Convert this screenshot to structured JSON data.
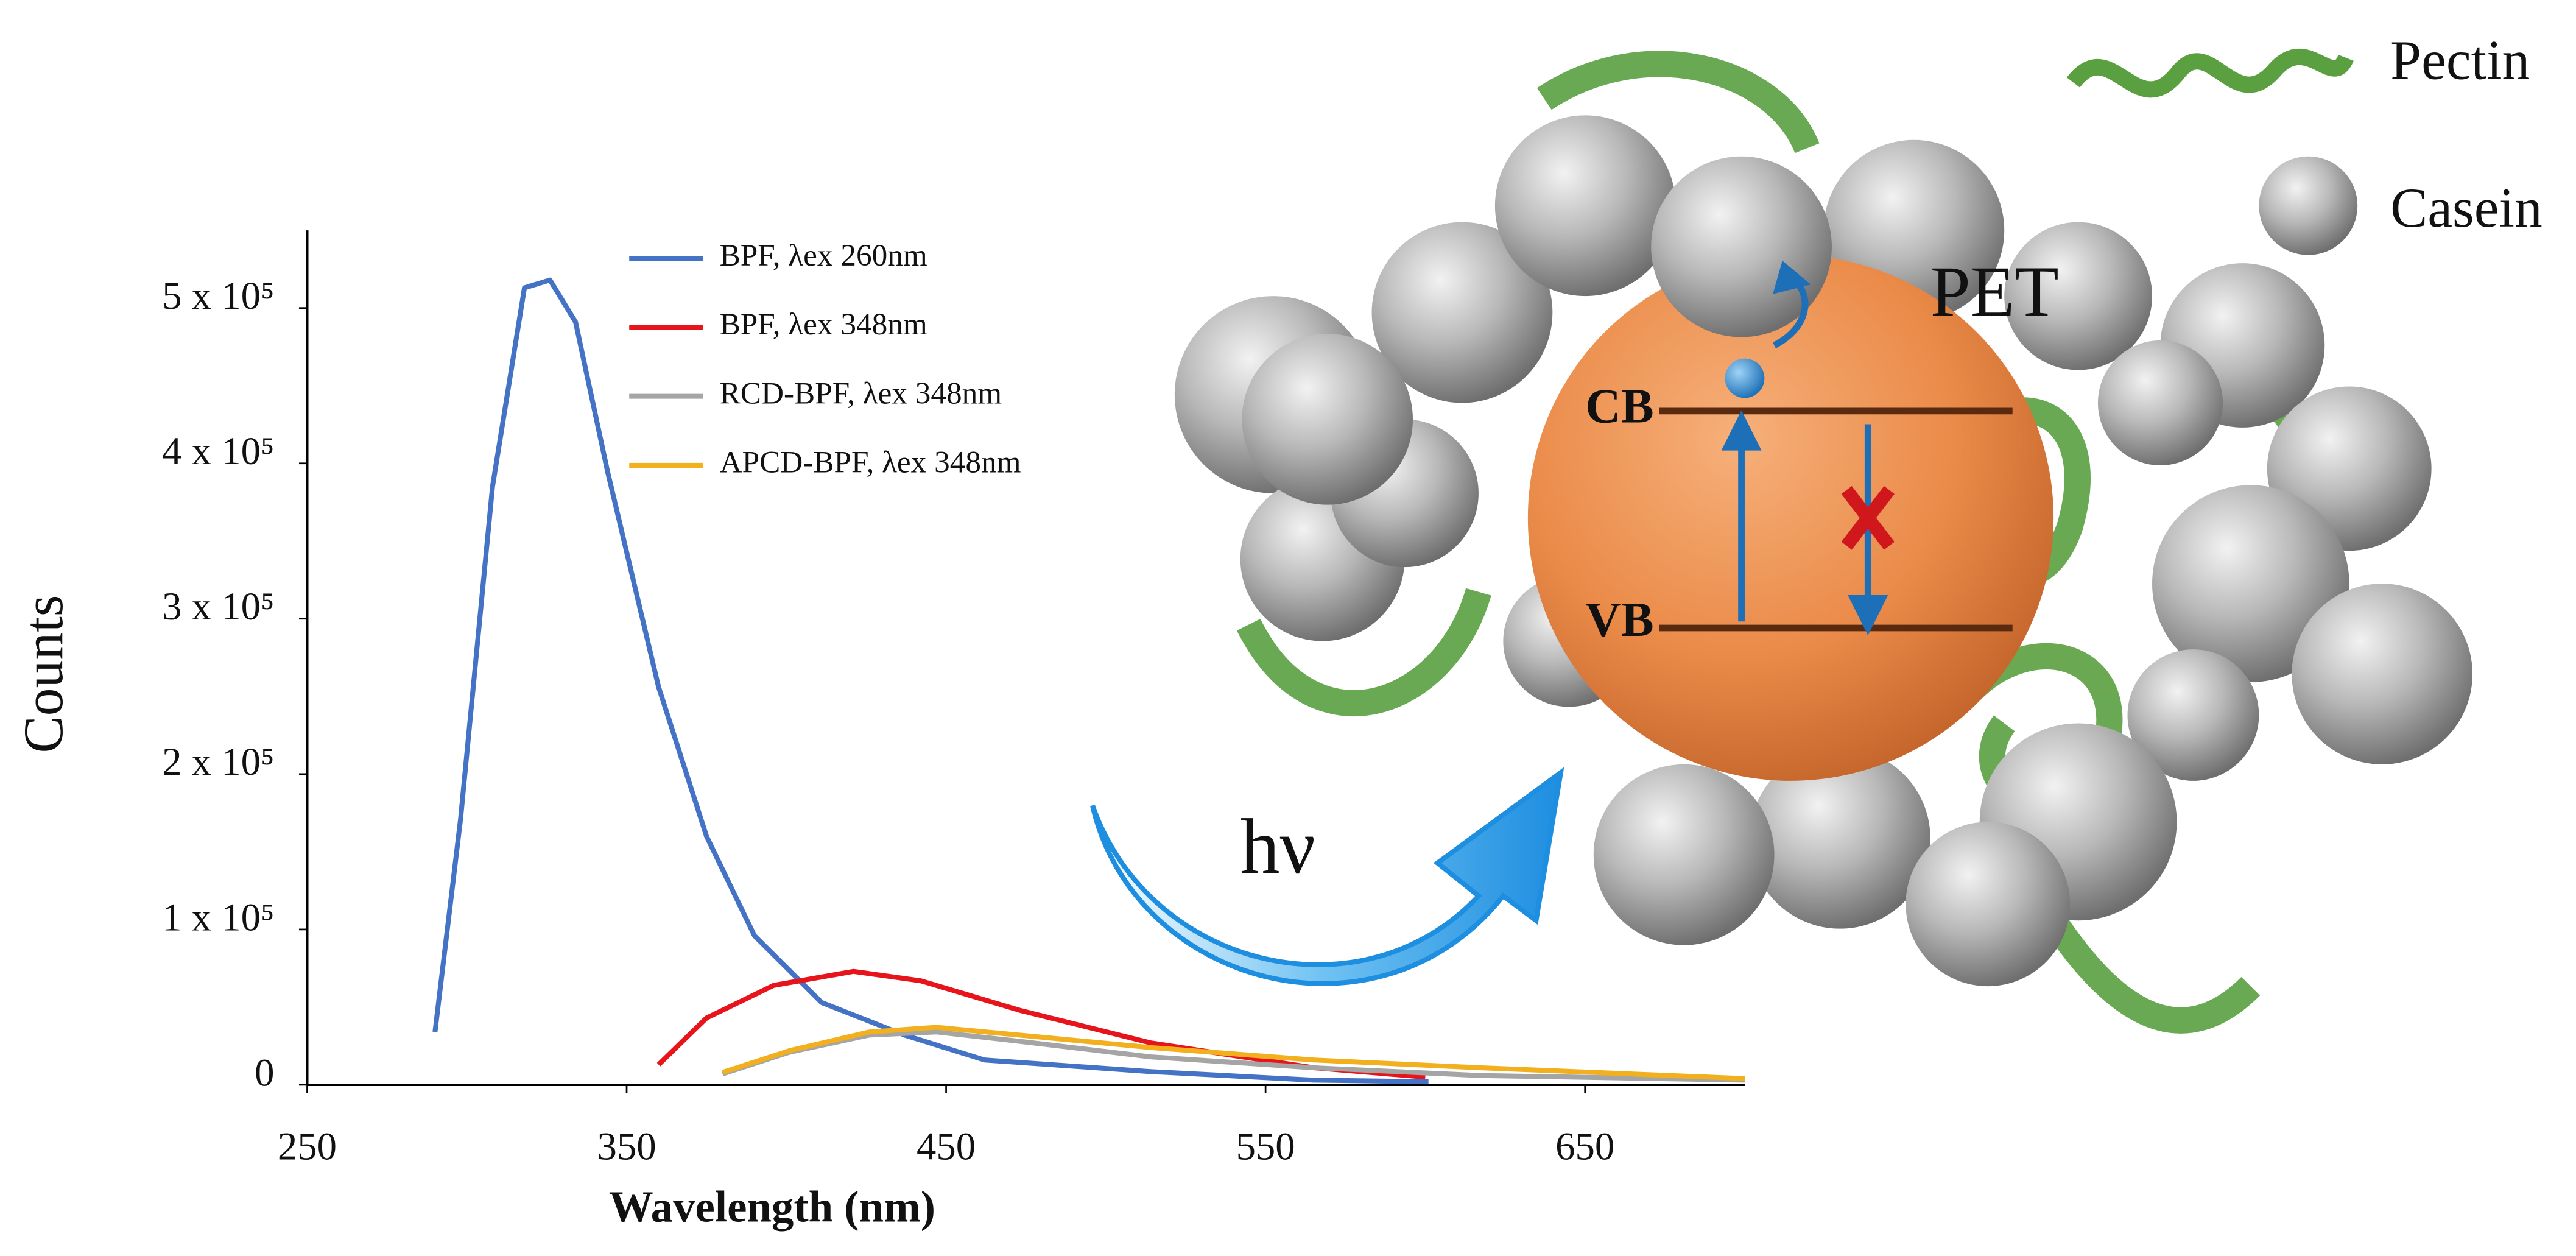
{
  "chart_data": {
    "type": "line",
    "xlabel": "Wavelength (nm)",
    "ylabel": "Counts",
    "xlim": [
      250,
      700
    ],
    "xticks": [
      250,
      350,
      450,
      550,
      650
    ],
    "ylim": [
      0,
      550000
    ],
    "yticks": [
      0,
      {
        "value": 100000,
        "label": "1 x 10⁵"
      },
      {
        "value": 200000,
        "label": "2 x 10⁵"
      },
      {
        "value": 300000,
        "label": "3 x 10⁵"
      },
      {
        "value": 400000,
        "label": "4 x 10⁵"
      },
      {
        "value": 500000,
        "label": "5 x 10⁵"
      }
    ],
    "grid": false,
    "legend": "upper left",
    "series": [
      {
        "name": "BPF, λex 260nm",
        "color": "#4472c4",
        "x": [
          290,
          298,
          308,
          318,
          326,
          334,
          344,
          360,
          375,
          390,
          411,
          437,
          462,
          514,
          565,
          601
        ],
        "values": [
          34000,
          171000,
          385000,
          513000,
          518000,
          491000,
          395000,
          256000,
          160000,
          96000,
          53000,
          32000,
          16000,
          8500,
          3000,
          2000
        ]
      },
      {
        "name": "BPF, λex 348nm",
        "color": "#e8141b",
        "x": [
          360,
          375,
          396,
          421,
          442,
          473,
          514,
          565,
          600
        ],
        "values": [
          13000,
          43000,
          64000,
          73000,
          67000,
          48000,
          27000,
          11000,
          5000
        ]
      },
      {
        "name": "RCD-BPF, λex 348nm",
        "color": "#a5a5a5",
        "x": [
          380,
          401,
          426,
          447,
          473,
          514,
          565,
          617,
          700
        ],
        "values": [
          7000,
          21000,
          32000,
          34000,
          28000,
          18000,
          11000,
          6000,
          3000
        ]
      },
      {
        "name": "APCD-BPF, λex 348nm",
        "color": "#f2b01e",
        "x": [
          380,
          401,
          426,
          447,
          473,
          514,
          565,
          617,
          700
        ],
        "values": [
          8000,
          22000,
          34000,
          37000,
          32000,
          24000,
          16000,
          11000,
          4000
        ]
      }
    ]
  },
  "diagram": {
    "pet": "PET",
    "cb": "CB",
    "vb": "VB",
    "hv": "hν",
    "legend": [
      "Pectin",
      "Casein"
    ]
  }
}
